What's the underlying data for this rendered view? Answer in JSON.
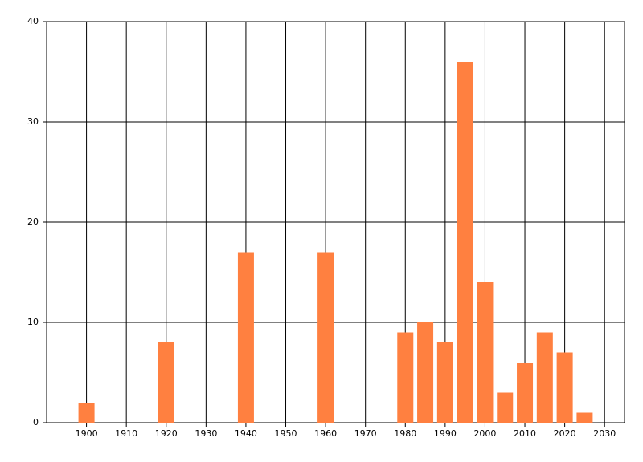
{
  "chart_data": {
    "type": "bar",
    "x": [
      1900,
      1920,
      1940,
      1960,
      1980,
      1985,
      1990,
      1995,
      2000,
      2005,
      2010,
      2015,
      2020,
      2025
    ],
    "values": [
      2,
      8,
      17,
      17,
      9,
      10,
      8,
      36,
      14,
      3,
      6,
      9,
      7,
      1
    ],
    "color": "#ff8040",
    "xlim": [
      1890,
      2035
    ],
    "xticks": [
      1900,
      1910,
      1920,
      1930,
      1940,
      1950,
      1960,
      1970,
      1980,
      1990,
      2000,
      2010,
      2020,
      2030
    ],
    "ylim": [
      0,
      40
    ],
    "yticks": [
      0,
      10,
      20,
      30,
      40
    ],
    "grid": true
  }
}
